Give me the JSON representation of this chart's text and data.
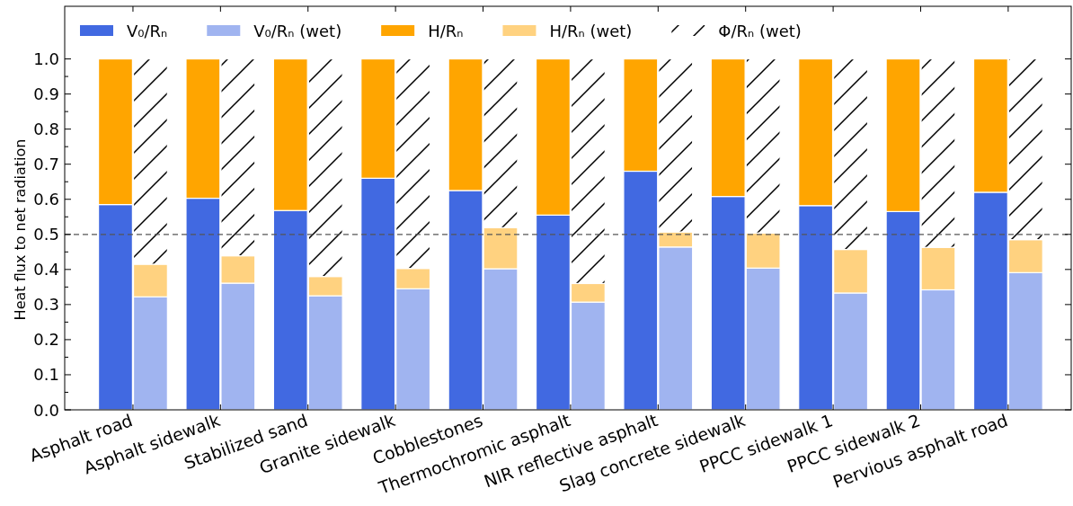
{
  "chart_data": [
    {
      "type": "bar",
      "stacked": true,
      "categories": [
        "Asphalt road",
        "Asphalt sidewalk",
        "Stabilized sand",
        "Granite sidewalk",
        "Cobblestones",
        "Thermochromic asphalt",
        "NIR reflective asphalt",
        "Slag concrete sidewalk",
        "PPCC sidewalk 1",
        "PPCC sidewalk 2",
        "Pervious asphalt road"
      ],
      "ylabel": "Heat flux to net radiation",
      "series": [
        {
          "name": "V₀/Rₙ",
          "color": "#4169e1",
          "values": [
            0.585,
            0.603,
            0.568,
            0.66,
            0.625,
            0.555,
            0.68,
            0.608,
            0.582,
            0.565,
            0.62
          ]
        },
        {
          "name": "H/Rₙ",
          "color": "#ffa500",
          "values": [
            0.415,
            0.397,
            0.432,
            0.34,
            0.375,
            0.445,
            0.32,
            0.392,
            0.418,
            0.435,
            0.38
          ]
        }
      ],
      "ylim": [
        0,
        1.15
      ],
      "yticks": [
        {
          "value": 0,
          "label": "0.0"
        },
        {
          "value": 0.05,
          "label": null
        },
        0.1,
        {
          "value": 0.15,
          "label": null
        },
        0.2,
        {
          "value": 0.25,
          "label": null
        },
        0.3,
        {
          "value": 0.35,
          "label": null
        },
        0.4,
        {
          "value": 0.45,
          "label": null
        },
        0.5,
        {
          "value": 0.55,
          "label": null
        },
        0.6,
        {
          "value": 0.65,
          "label": null
        },
        0.7,
        {
          "value": 0.75,
          "label": null
        },
        0.8,
        {
          "value": 0.85,
          "label": null
        },
        0.9,
        {
          "value": 0.95,
          "label": null
        },
        {
          "value": 1,
          "label": "1.0"
        }
      ],
      "ref_lines": [
        {
          "axis": "y",
          "value": 0.5,
          "color": "#555555",
          "line_style": "dashed"
        }
      ],
      "legend": "top"
    },
    {
      "type": "bar",
      "stacked": true,
      "categories": [
        "Asphalt road",
        "Asphalt sidewalk",
        "Stabilized sand",
        "Granite sidewalk",
        "Cobblestones",
        "Thermochromic asphalt",
        "NIR reflective asphalt",
        "Slag concrete sidewalk",
        "PPCC sidewalk 1",
        "PPCC sidewalk 2",
        "Pervious asphalt road"
      ],
      "series": [
        {
          "name": "V₀/Rₙ (wet)",
          "color": "#a0b4f0",
          "values": [
            0.322,
            0.361,
            0.325,
            0.345,
            0.402,
            0.307,
            0.464,
            0.404,
            0.333,
            0.342,
            0.391
          ]
        },
        {
          "name": "H/Rₙ (wet)",
          "color": "#ffd280",
          "values": [
            0.093,
            0.078,
            0.055,
            0.058,
            0.117,
            0.053,
            0.043,
            0.1,
            0.124,
            0.121,
            0.094
          ]
        },
        {
          "name": "Φ/Rₙ (wet)",
          "color": "#ffffff",
          "values": [
            0.585,
            0.561,
            0.62,
            0.597,
            0.481,
            0.64,
            0.493,
            0.496,
            0.543,
            0.537,
            0.515
          ]
        }
      ],
      "ylim": [
        0,
        1.15
      ],
      "tick_labels": false,
      "legend": "top"
    }
  ]
}
